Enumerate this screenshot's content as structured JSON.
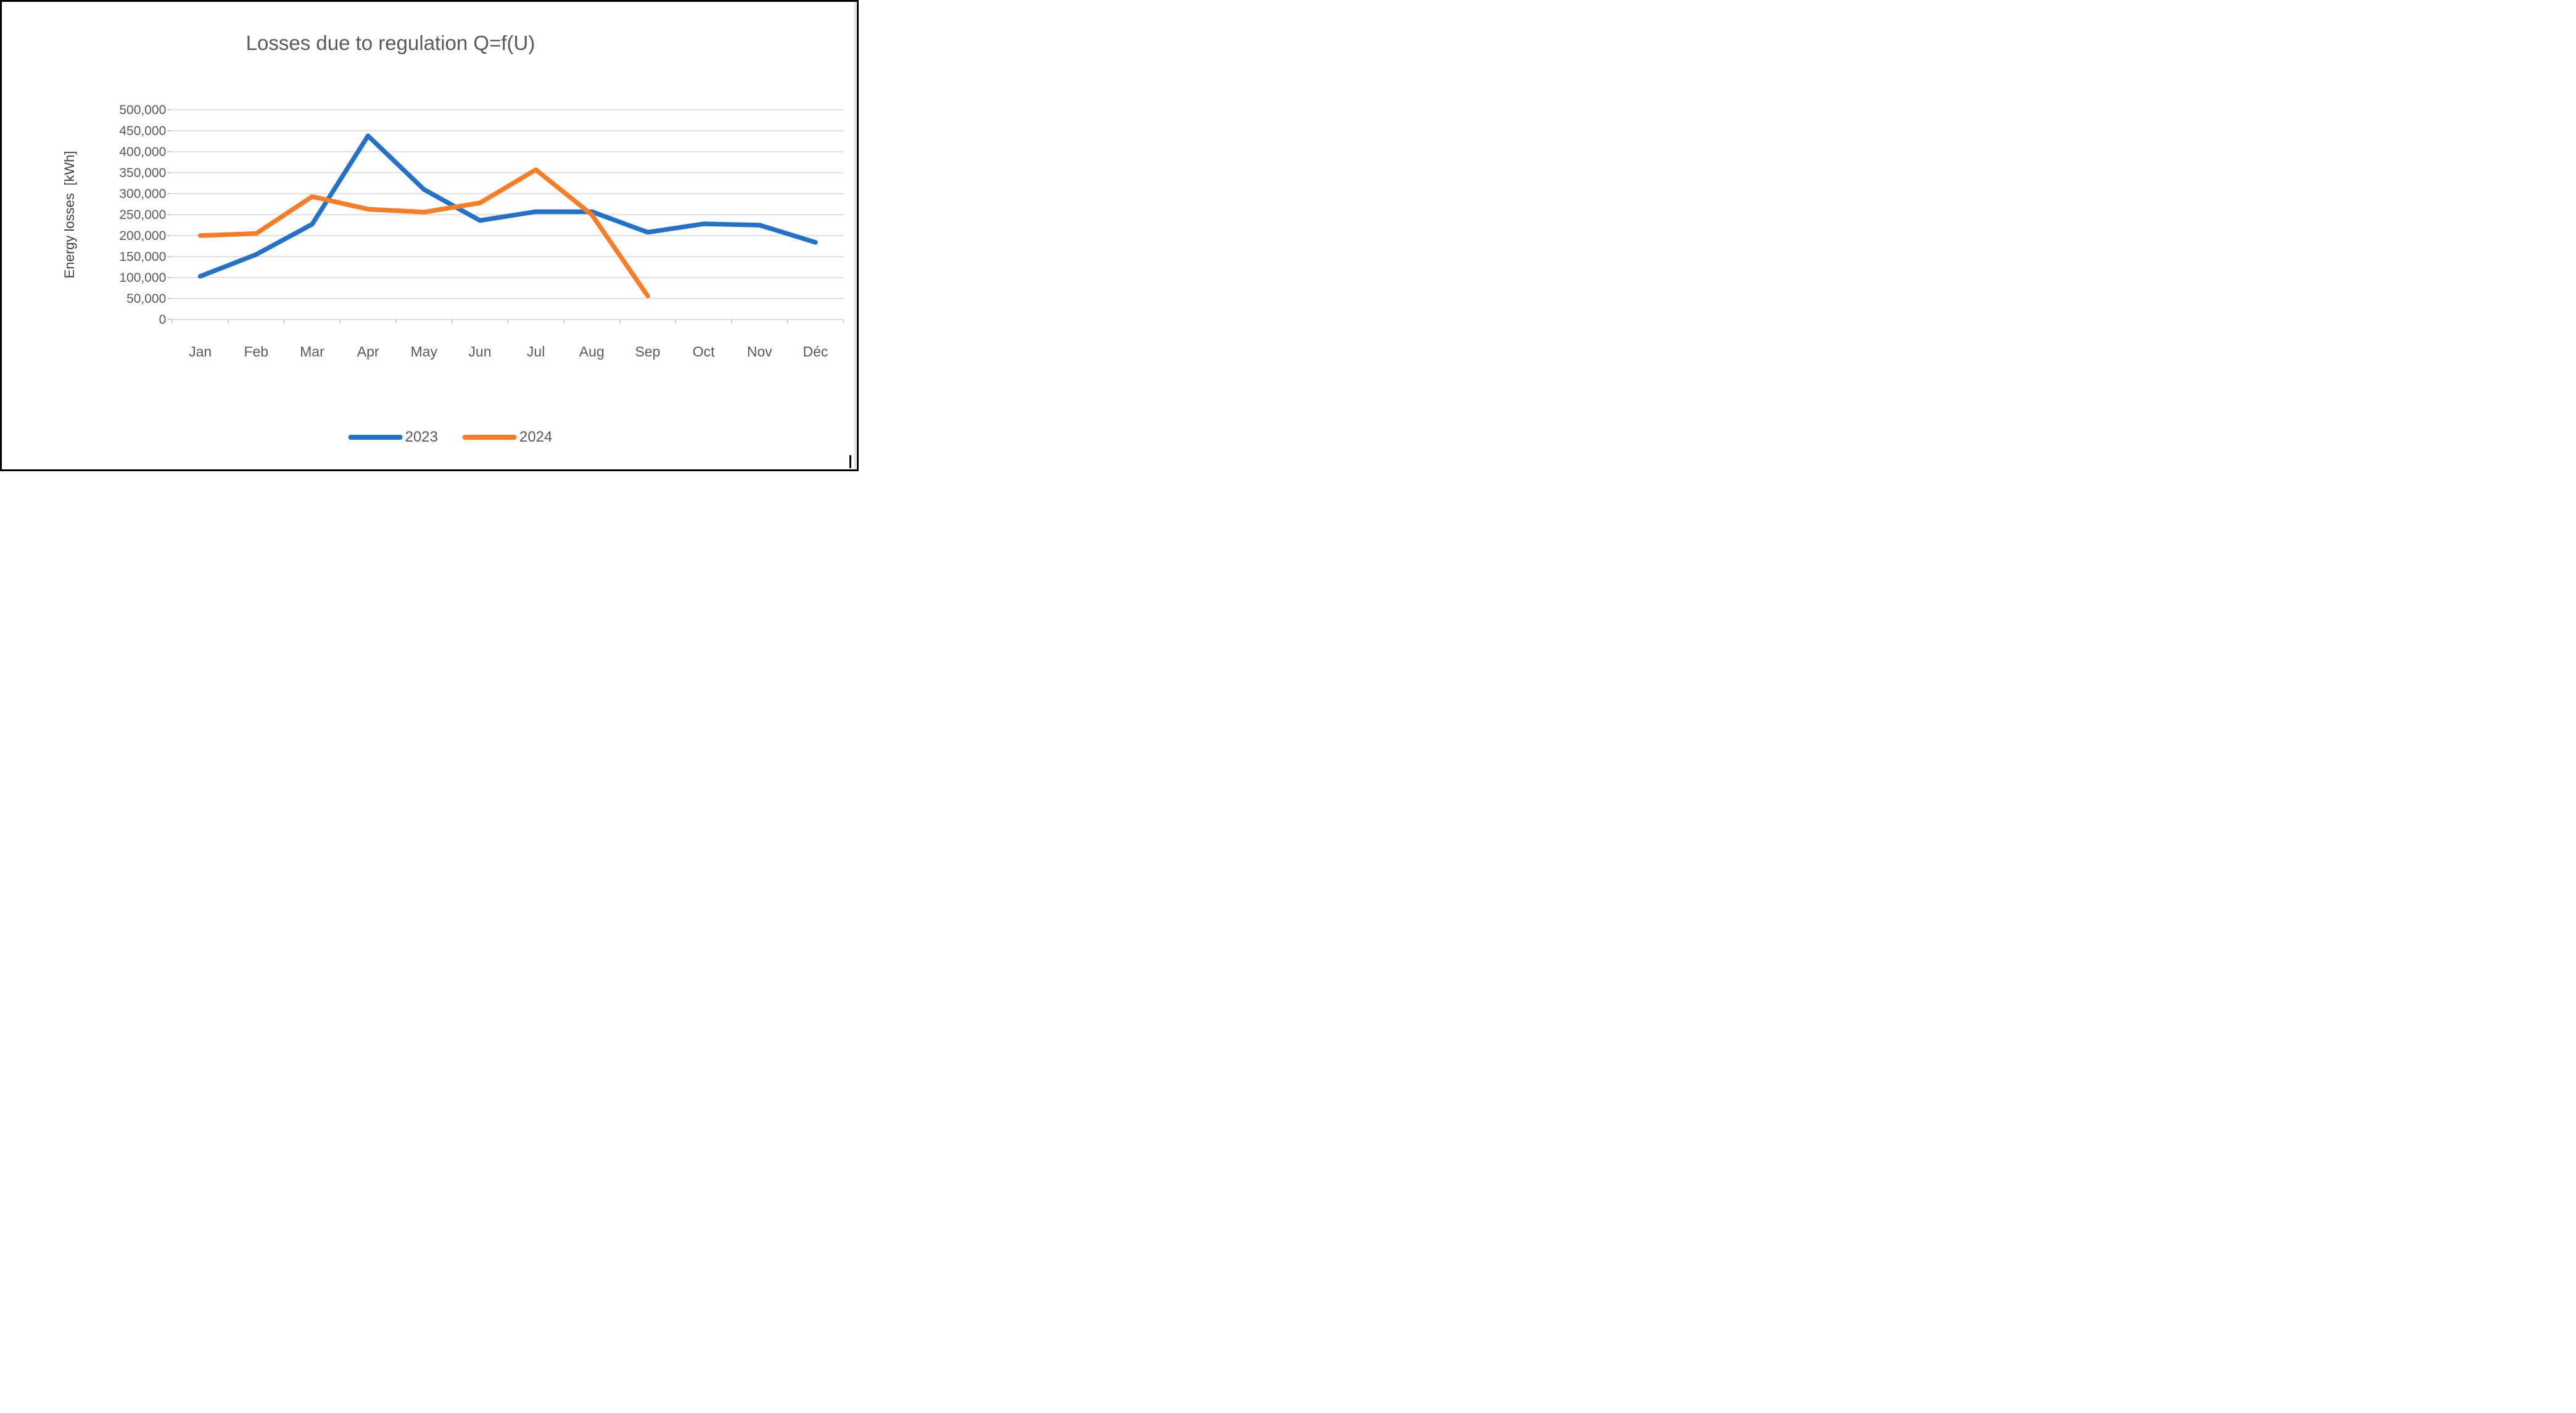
{
  "chart_data": {
    "type": "line",
    "title": "Losses due to regulation Q=f(U)",
    "ylabel": "Energy losses  [kWh]",
    "xlabel": "",
    "categories": [
      "Jan",
      "Feb",
      "Mar",
      "Apr",
      "May",
      "Jun",
      "Jul",
      "Aug",
      "Sep",
      "Oct",
      "Nov",
      "Déc"
    ],
    "series": [
      {
        "name": "2023",
        "color": "#2372C8",
        "values": [
          103000,
          155000,
          227000,
          438000,
          310000,
          236000,
          257000,
          257000,
          208000,
          228000,
          225000,
          184000
        ]
      },
      {
        "name": "2024",
        "color": "#F97D28",
        "values": [
          200000,
          205000,
          293000,
          263000,
          256000,
          278000,
          357000,
          250000,
          56000
        ]
      }
    ],
    "ylim": [
      0,
      500000
    ],
    "ytick_step": 50000,
    "ytick_labels": [
      "0",
      "50,000",
      "100,000",
      "150,000",
      "200,000",
      "250,000",
      "300,000",
      "350,000",
      "400,000",
      "450,000",
      "500,000"
    ],
    "grid": true,
    "legend_position": "bottom",
    "colors": {
      "text": "#595959",
      "gridline": "#d6d6d6",
      "tick": "#bfbfbf",
      "background": "#ffffff",
      "frame_border": "#000000"
    }
  }
}
